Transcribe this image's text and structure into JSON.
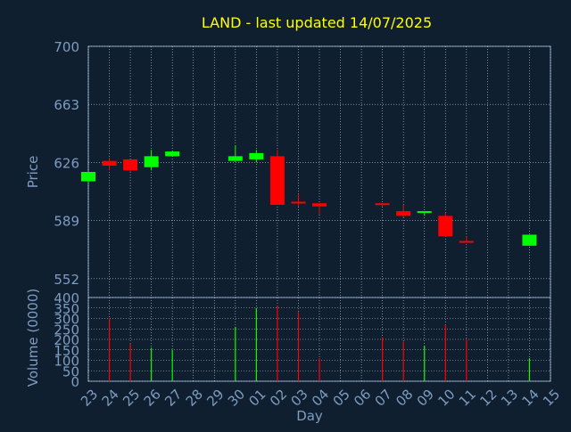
{
  "colors": {
    "background": "#0f1f30",
    "axis_text": "#7e9cc0",
    "title": "#ffff00",
    "grid": "#ffffff",
    "frame": "#8aa4c8",
    "up": "#00ff00",
    "down": "#ff0000"
  },
  "chart_data": {
    "type": "candlestick",
    "title": "LAND - last updated 14/07/2025",
    "xlabel": "Day",
    "price_panel": {
      "ylabel": "Price",
      "ylim": [
        540,
        700
      ],
      "yticks": [
        552,
        589,
        626,
        663,
        700
      ]
    },
    "volume_panel": {
      "ylabel": "Volume (0000)",
      "ylim": [
        0,
        400
      ],
      "yticks": [
        0,
        50,
        100,
        150,
        200,
        250,
        300,
        350,
        400
      ]
    },
    "x_tick_labels": [
      "23",
      "24",
      "25",
      "26",
      "27",
      "28",
      "29",
      "30",
      "01",
      "02",
      "03",
      "04",
      "05",
      "06",
      "07",
      "08",
      "09",
      "10",
      "11",
      "12",
      "13",
      "14",
      "15"
    ],
    "candles": [
      {
        "x": "23",
        "open": 614,
        "high": 620,
        "low": 613,
        "close": 620,
        "volume": 0
      },
      {
        "x": "24",
        "open": 627,
        "high": 629,
        "low": 621,
        "close": 624,
        "volume": 300
      },
      {
        "x": "25",
        "open": 628,
        "high": 628,
        "low": 620,
        "close": 621,
        "volume": 180
      },
      {
        "x": "26",
        "open": 623,
        "high": 634,
        "low": 621,
        "close": 630,
        "volume": 160
      },
      {
        "x": "27",
        "open": 630,
        "high": 633,
        "low": 630,
        "close": 633,
        "volume": 150
      },
      {
        "x": "30",
        "open": 627,
        "high": 637,
        "low": 627,
        "close": 630,
        "volume": 260
      },
      {
        "x": "01",
        "open": 628,
        "high": 634,
        "low": 626,
        "close": 632,
        "volume": 350
      },
      {
        "x": "02",
        "open": 630,
        "high": 634,
        "low": 599,
        "close": 599,
        "volume": 360
      },
      {
        "x": "03",
        "open": 601,
        "high": 606,
        "low": 598,
        "close": 600,
        "volume": 330
      },
      {
        "x": "04",
        "open": 600,
        "high": 600,
        "low": 593,
        "close": 598,
        "volume": 110
      },
      {
        "x": "07",
        "open": 600,
        "high": 600,
        "low": 598,
        "close": 599,
        "volume": 210
      },
      {
        "x": "08",
        "open": 595,
        "high": 599,
        "low": 591,
        "close": 592,
        "volume": 190
      },
      {
        "x": "09",
        "open": 594,
        "high": 595,
        "low": 592,
        "close": 595,
        "volume": 170
      },
      {
        "x": "10",
        "open": 592,
        "high": 594,
        "low": 579,
        "close": 579,
        "volume": 270
      },
      {
        "x": "11",
        "open": 576,
        "high": 579,
        "low": 575,
        "close": 575,
        "volume": 200
      },
      {
        "x": "14",
        "open": 573,
        "high": 580,
        "low": 573,
        "close": 580,
        "volume": 110
      }
    ],
    "grid": true
  }
}
